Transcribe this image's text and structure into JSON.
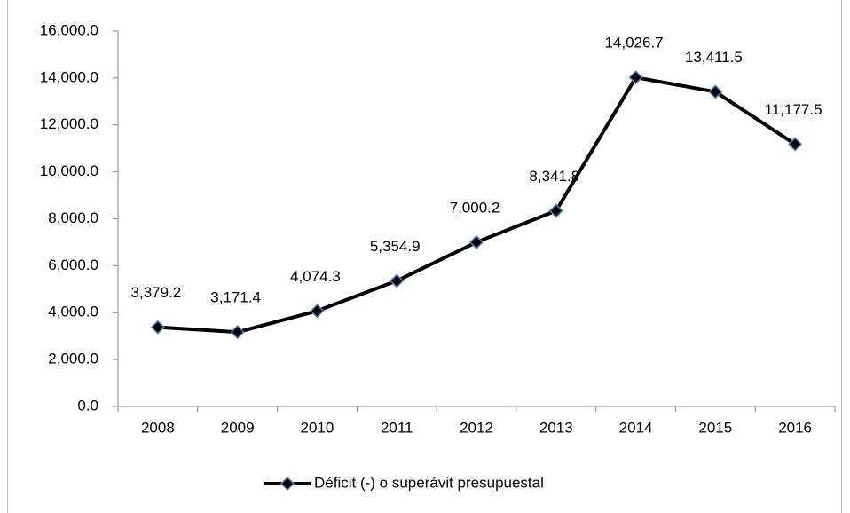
{
  "chart_data": {
    "type": "line",
    "categories": [
      "2008",
      "2009",
      "2010",
      "2011",
      "2012",
      "2013",
      "2014",
      "2015",
      "2016"
    ],
    "series": [
      {
        "name": "Déficit (-) o superávit presupuestal",
        "color": "#000000",
        "marker_color": "#4f81bd",
        "values": [
          3379.2,
          3171.4,
          4074.3,
          5354.9,
          7000.2,
          8341.8,
          14026.7,
          13411.5,
          11177.5
        ],
        "value_labels": [
          "3,379.2",
          "3,171.4",
          "4,074.3",
          "5,354.9",
          "7,000.2",
          "8,341.8",
          "14,026.7",
          "13,411.5",
          "11,177.5"
        ]
      }
    ],
    "ylim": [
      0,
      16000
    ],
    "yticks": [
      {
        "value": 0,
        "label": "0.0"
      },
      {
        "value": 2000,
        "label": "2,000.0"
      },
      {
        "value": 4000,
        "label": "4,000.0"
      },
      {
        "value": 6000,
        "label": "6,000.0"
      },
      {
        "value": 8000,
        "label": "8,000.0"
      },
      {
        "value": 10000,
        "label": "10,000.0"
      },
      {
        "value": 12000,
        "label": "12,000.0"
      },
      {
        "value": 14000,
        "label": "14,000.0"
      },
      {
        "value": 16000,
        "label": "16,000.0"
      }
    ],
    "grid": false,
    "legend": "bottom"
  }
}
